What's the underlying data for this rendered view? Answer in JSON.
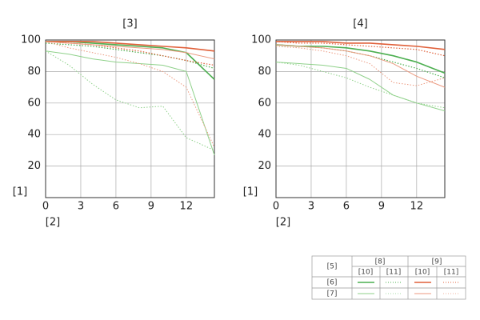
{
  "chart_data": [
    {
      "type": "line",
      "title": "[3]",
      "y_label": "[1]",
      "x_label": "[2]",
      "x": [
        0,
        2,
        4,
        6,
        8,
        10,
        12,
        14.4
      ],
      "xlim": [
        0,
        14.4
      ],
      "ylim": [
        0,
        100
      ],
      "xticks": [
        0,
        3,
        6,
        9,
        12
      ],
      "yticks": [
        20,
        40,
        60,
        80,
        100
      ],
      "grid": true,
      "series": [
        {
          "color": "#4caf50",
          "width": 1.6,
          "dash": false,
          "values": [
            99,
            99,
            98,
            97,
            96,
            95,
            92,
            75
          ]
        },
        {
          "color": "#4caf50",
          "width": 1.2,
          "dash": true,
          "values": [
            98,
            97,
            96,
            94,
            92,
            90,
            87,
            82
          ]
        },
        {
          "color": "#e0603a",
          "width": 1.6,
          "dash": false,
          "values": [
            99,
            99,
            99,
            98,
            97,
            96,
            95,
            93
          ]
        },
        {
          "color": "#e0603a",
          "width": 1.2,
          "dash": true,
          "values": [
            99,
            98,
            97,
            95,
            93,
            90,
            87,
            84
          ]
        },
        {
          "color": "#8fd18a",
          "width": 1,
          "dash": false,
          "values": [
            93,
            91,
            88,
            86,
            85,
            84,
            80,
            27
          ]
        },
        {
          "color": "#8fd18a",
          "width": 1,
          "dash": true,
          "values": [
            93,
            84,
            72,
            62,
            57,
            58,
            38,
            30
          ]
        },
        {
          "color": "#ec9a80",
          "width": 1,
          "dash": true,
          "values": [
            99,
            95,
            92,
            89,
            85,
            80,
            70,
            32
          ]
        },
        {
          "color": "#ec9a80",
          "width": 1,
          "dash": false,
          "values": [
            99,
            98,
            97,
            96,
            95,
            94,
            92,
            88
          ]
        }
      ]
    },
    {
      "type": "line",
      "title": "[4]",
      "y_label": "[1]",
      "x_label": "[2]",
      "x": [
        0,
        2,
        4,
        6,
        8,
        10,
        12,
        14.4
      ],
      "xlim": [
        0,
        14.4
      ],
      "ylim": [
        0,
        100
      ],
      "xticks": [
        0,
        3,
        6,
        9,
        12
      ],
      "yticks": [
        20,
        40,
        60,
        80,
        100
      ],
      "grid": true,
      "series": [
        {
          "color": "#4caf50",
          "width": 1.6,
          "dash": false,
          "values": [
            97,
            96,
            96,
            95,
            93,
            90,
            86,
            79
          ]
        },
        {
          "color": "#4caf50",
          "width": 1.2,
          "dash": true,
          "values": [
            97,
            96,
            95,
            93,
            90,
            86,
            82,
            76
          ]
        },
        {
          "color": "#e0603a",
          "width": 1.6,
          "dash": false,
          "values": [
            99,
            99,
            99,
            98,
            98,
            97,
            96,
            94
          ]
        },
        {
          "color": "#e0603a",
          "width": 1.2,
          "dash": true,
          "values": [
            99,
            98,
            98,
            97,
            96,
            95,
            94,
            90
          ]
        },
        {
          "color": "#8fd18a",
          "width": 1,
          "dash": false,
          "values": [
            86,
            85,
            84,
            82,
            75,
            65,
            60,
            55
          ]
        },
        {
          "color": "#8fd18a",
          "width": 1,
          "dash": true,
          "values": [
            86,
            84,
            80,
            76,
            70,
            65,
            60,
            57
          ]
        },
        {
          "color": "#ec9a80",
          "width": 1,
          "dash": false,
          "values": [
            97,
            96,
            95,
            93,
            90,
            85,
            77,
            70
          ]
        },
        {
          "color": "#ec9a80",
          "width": 1,
          "dash": true,
          "values": [
            96,
            95,
            93,
            90,
            85,
            73,
            71,
            76
          ]
        }
      ]
    }
  ],
  "legend_table": {
    "corner": "[5]",
    "groups": [
      "[8]",
      "[9]"
    ],
    "subheads": [
      "[10]",
      "[11]",
      "[10]",
      "[11]"
    ],
    "rows": [
      "[6]",
      "[7]"
    ]
  }
}
